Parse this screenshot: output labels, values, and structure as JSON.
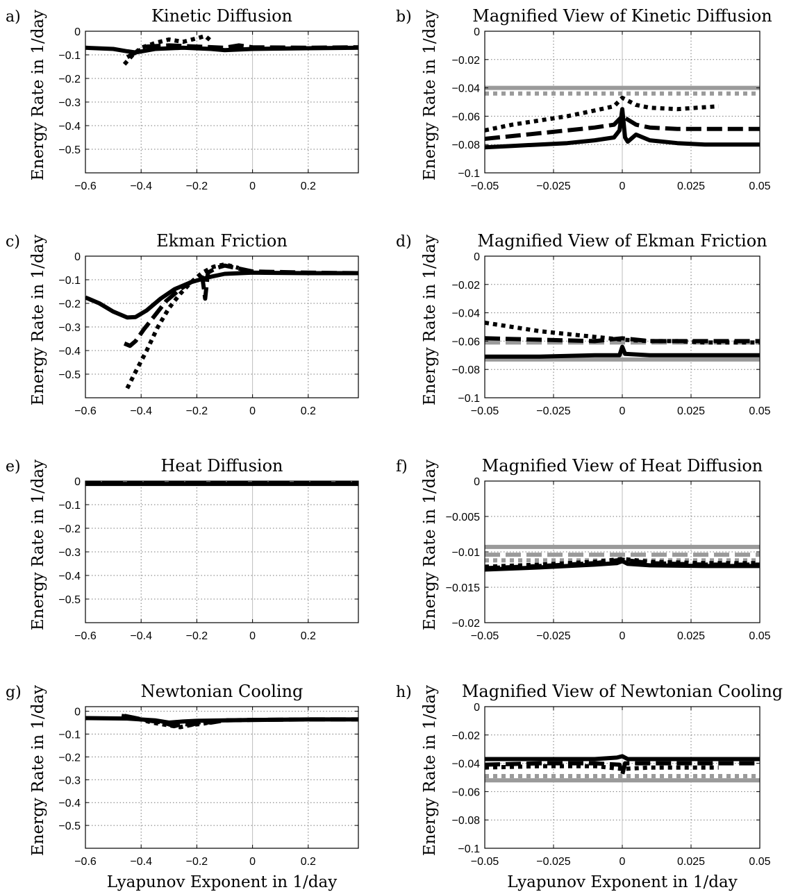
{
  "figure": {
    "colors": {
      "black": "#000000",
      "gray": "#9a9a9a",
      "grid": "#777777"
    }
  },
  "chart_data": [
    {
      "letter": "a)",
      "type": "line",
      "title": "Kinetic Diffusion",
      "ylabel": "Energy Rate in 1/day",
      "xlabel": "",
      "xlim": [
        -0.6,
        0.38
      ],
      "ylim": [
        -0.6,
        0
      ],
      "xticks": [
        -0.6,
        -0.4,
        -0.2,
        0,
        0.2
      ],
      "xtick_labels": [
        "−0.6",
        "−0.4",
        "−0.2",
        "0",
        "0.2"
      ],
      "yticks": [
        0,
        -0.1,
        -0.2,
        -0.3,
        -0.4,
        -0.5
      ],
      "ytick_labels": [
        "0",
        "−0.1",
        "−0.2",
        "−0.3",
        "−0.4",
        "−0.5"
      ],
      "grid": true,
      "zero_line": true,
      "series": [
        {
          "style": "solid",
          "color": "black",
          "x": [
            -0.6,
            -0.5,
            -0.45,
            -0.42,
            -0.35,
            -0.25,
            -0.15,
            -0.1,
            0,
            0.2,
            0.38
          ],
          "y": [
            -0.07,
            -0.075,
            -0.085,
            -0.09,
            -0.075,
            -0.07,
            -0.075,
            -0.08,
            -0.075,
            -0.072,
            -0.07
          ]
        },
        {
          "style": "dashed",
          "color": "black",
          "x": [
            -0.45,
            -0.42,
            -0.38,
            -0.3,
            -0.2,
            -0.1,
            -0.05,
            0,
            0.2,
            0.38
          ],
          "y": [
            -0.11,
            -0.09,
            -0.065,
            -0.06,
            -0.065,
            -0.07,
            -0.06,
            -0.068,
            -0.07,
            -0.068
          ]
        },
        {
          "style": "dotted",
          "color": "black",
          "x": [
            -0.46,
            -0.43,
            -0.4,
            -0.35,
            -0.3,
            -0.25,
            -0.2,
            -0.17,
            -0.15
          ],
          "y": [
            -0.14,
            -0.1,
            -0.07,
            -0.05,
            -0.035,
            -0.045,
            -0.03,
            -0.02,
            -0.04
          ]
        }
      ]
    },
    {
      "letter": "b)",
      "type": "line",
      "title": "Magnified View of Kinetic Diffusion",
      "ylabel": "Energy Rate in 1/day",
      "xlabel": "",
      "xlim": [
        -0.05,
        0.05
      ],
      "ylim": [
        -0.1,
        0
      ],
      "xticks": [
        -0.05,
        -0.025,
        0,
        0.025,
        0.05
      ],
      "xtick_labels": [
        "−0.05",
        "−0.025",
        "0",
        "0.025",
        "0.05"
      ],
      "yticks": [
        0,
        -0.02,
        -0.04,
        -0.06,
        -0.08,
        -0.1
      ],
      "ytick_labels": [
        "0",
        "−0.02",
        "−0.04",
        "−0.06",
        "−0.08",
        "−0.1"
      ],
      "grid": true,
      "zero_line": true,
      "series": [
        {
          "style": "solid",
          "color": "gray",
          "x": [
            -0.05,
            0.05
          ],
          "y": [
            -0.04,
            -0.04
          ]
        },
        {
          "style": "dotted",
          "color": "gray",
          "x": [
            -0.05,
            0.05
          ],
          "y": [
            -0.044,
            -0.044
          ]
        },
        {
          "style": "solid",
          "color": "black",
          "x": [
            -0.05,
            -0.04,
            -0.03,
            -0.02,
            -0.01,
            -0.003,
            -0.001,
            0,
            0.001,
            0.002,
            0.005,
            0.01,
            0.02,
            0.03,
            0.05
          ],
          "y": [
            -0.082,
            -0.081,
            -0.08,
            -0.079,
            -0.077,
            -0.075,
            -0.07,
            -0.055,
            -0.075,
            -0.078,
            -0.073,
            -0.077,
            -0.079,
            -0.08,
            -0.08
          ]
        },
        {
          "style": "dashed",
          "color": "black",
          "x": [
            -0.05,
            -0.04,
            -0.03,
            -0.02,
            -0.01,
            -0.003,
            0,
            0.005,
            0.01,
            0.02,
            0.03,
            0.05
          ],
          "y": [
            -0.076,
            -0.074,
            -0.072,
            -0.07,
            -0.068,
            -0.066,
            -0.06,
            -0.066,
            -0.068,
            -0.069,
            -0.069,
            -0.069
          ]
        },
        {
          "style": "dotted",
          "color": "black",
          "x": [
            -0.05,
            -0.04,
            -0.03,
            -0.02,
            -0.01,
            -0.003,
            0,
            0.005,
            0.01,
            0.02,
            0.035
          ],
          "y": [
            -0.07,
            -0.066,
            -0.063,
            -0.06,
            -0.056,
            -0.053,
            -0.047,
            -0.052,
            -0.054,
            -0.055,
            -0.053
          ]
        }
      ]
    },
    {
      "letter": "c)",
      "type": "line",
      "title": "Ekman Friction",
      "ylabel": "Energy Rate in 1/day",
      "xlabel": "",
      "xlim": [
        -0.6,
        0.38
      ],
      "ylim": [
        -0.6,
        0
      ],
      "xticks": [
        -0.6,
        -0.4,
        -0.2,
        0,
        0.2
      ],
      "xtick_labels": [
        "−0.6",
        "−0.4",
        "−0.2",
        "0",
        "0.2"
      ],
      "yticks": [
        0,
        -0.1,
        -0.2,
        -0.3,
        -0.4,
        -0.5
      ],
      "ytick_labels": [
        "0",
        "−0.1",
        "−0.2",
        "−0.3",
        "−0.4",
        "−0.5"
      ],
      "grid": true,
      "zero_line": true,
      "series": [
        {
          "style": "solid",
          "color": "black",
          "x": [
            -0.6,
            -0.55,
            -0.5,
            -0.45,
            -0.42,
            -0.38,
            -0.33,
            -0.28,
            -0.22,
            -0.16,
            -0.1,
            0,
            0.2,
            0.38
          ],
          "y": [
            -0.175,
            -0.2,
            -0.235,
            -0.26,
            -0.258,
            -0.23,
            -0.18,
            -0.14,
            -0.11,
            -0.09,
            -0.075,
            -0.07,
            -0.072,
            -0.072
          ]
        },
        {
          "style": "dashed",
          "color": "black",
          "x": [
            -0.46,
            -0.44,
            -0.42,
            -0.39,
            -0.35,
            -0.31,
            -0.26,
            -0.22,
            -0.18,
            -0.17,
            -0.16,
            -0.13,
            -0.1,
            0,
            0.2,
            0.38
          ],
          "y": [
            -0.37,
            -0.38,
            -0.36,
            -0.31,
            -0.25,
            -0.19,
            -0.14,
            -0.11,
            -0.09,
            -0.18,
            -0.07,
            -0.05,
            -0.04,
            -0.065,
            -0.07,
            -0.072
          ]
        },
        {
          "style": "dotted",
          "color": "black",
          "x": [
            -0.45,
            -0.42,
            -0.38,
            -0.34,
            -0.3,
            -0.26,
            -0.22,
            -0.18,
            -0.14,
            -0.1,
            -0.05
          ],
          "y": [
            -0.56,
            -0.49,
            -0.4,
            -0.3,
            -0.22,
            -0.16,
            -0.11,
            -0.07,
            -0.045,
            -0.035,
            -0.05
          ]
        }
      ]
    },
    {
      "letter": "d)",
      "type": "line",
      "title": "Magnified View of Ekman Friction",
      "ylabel": "Energy Rate in 1/day",
      "xlabel": "",
      "xlim": [
        -0.05,
        0.05
      ],
      "ylim": [
        -0.1,
        0
      ],
      "xticks": [
        -0.05,
        -0.025,
        0,
        0.025,
        0.05
      ],
      "xtick_labels": [
        "−0.05",
        "−0.025",
        "0",
        "0.025",
        "0.05"
      ],
      "yticks": [
        0,
        -0.02,
        -0.04,
        -0.06,
        -0.08,
        -0.1
      ],
      "ytick_labels": [
        "0",
        "−0.02",
        "−0.04",
        "−0.06",
        "−0.08",
        "−0.1"
      ],
      "grid": true,
      "zero_line": true,
      "series": [
        {
          "style": "solid",
          "color": "gray",
          "x": [
            -0.05,
            0.05
          ],
          "y": [
            -0.073,
            -0.073
          ]
        },
        {
          "style": "dashed",
          "color": "gray",
          "x": [
            -0.05,
            0.05
          ],
          "y": [
            -0.061,
            -0.061
          ]
        },
        {
          "style": "solid",
          "color": "black",
          "x": [
            -0.05,
            -0.03,
            -0.01,
            -0.001,
            0,
            0.001,
            0.01,
            0.03,
            0.05
          ],
          "y": [
            -0.071,
            -0.071,
            -0.07,
            -0.07,
            -0.064,
            -0.069,
            -0.07,
            -0.07,
            -0.07
          ]
        },
        {
          "style": "dashed",
          "color": "black",
          "x": [
            -0.05,
            -0.03,
            -0.01,
            0,
            0.01,
            0.03,
            0.05
          ],
          "y": [
            -0.058,
            -0.059,
            -0.06,
            -0.058,
            -0.06,
            -0.06,
            -0.06
          ]
        },
        {
          "style": "dotted",
          "color": "black",
          "x": [
            -0.05,
            -0.04,
            -0.03,
            -0.02,
            -0.01,
            0,
            0.01,
            0.02,
            0.03,
            0.05
          ],
          "y": [
            -0.047,
            -0.05,
            -0.053,
            -0.055,
            -0.057,
            -0.059,
            -0.06,
            -0.06,
            -0.061,
            -0.061
          ]
        }
      ]
    },
    {
      "letter": "e)",
      "type": "line",
      "title": "Heat Diffusion",
      "ylabel": "Energy Rate in 1/day",
      "xlabel": "",
      "xlim": [
        -0.6,
        0.38
      ],
      "ylim": [
        -0.6,
        0
      ],
      "xticks": [
        -0.6,
        -0.4,
        -0.2,
        0,
        0.2
      ],
      "xtick_labels": [
        "−0.6",
        "−0.4",
        "−0.2",
        "0",
        "0.2"
      ],
      "yticks": [
        0,
        -0.1,
        -0.2,
        -0.3,
        -0.4,
        -0.5
      ],
      "ytick_labels": [
        "0",
        "−0.1",
        "−0.2",
        "−0.3",
        "−0.4",
        "−0.5"
      ],
      "grid": true,
      "zero_line": true,
      "series": [
        {
          "style": "solid",
          "color": "black",
          "x": [
            -0.6,
            0.38
          ],
          "y": [
            -0.012,
            -0.012
          ]
        },
        {
          "style": "dashed",
          "color": "black",
          "x": [
            -0.6,
            0.38
          ],
          "y": [
            -0.01,
            -0.01
          ]
        },
        {
          "style": "dotted",
          "color": "black",
          "x": [
            -0.6,
            0.38
          ],
          "y": [
            -0.008,
            -0.008
          ]
        }
      ]
    },
    {
      "letter": "f)",
      "type": "line",
      "title": "Magnified View of Heat Diffusion",
      "ylabel": "Energy Rate in 1/day",
      "xlabel": "",
      "xlim": [
        -0.05,
        0.05
      ],
      "ylim": [
        -0.02,
        0
      ],
      "xticks": [
        -0.05,
        -0.025,
        0,
        0.025,
        0.05
      ],
      "xtick_labels": [
        "−0.05",
        "−0.025",
        "0",
        "0.025",
        "0.05"
      ],
      "yticks": [
        0,
        -0.005,
        -0.01,
        -0.015,
        -0.02
      ],
      "ytick_labels": [
        "0",
        "−0.005",
        "−0.01",
        "−0.015",
        "−0.02"
      ],
      "grid": true,
      "zero_line": true,
      "series": [
        {
          "style": "solid",
          "color": "gray",
          "x": [
            -0.05,
            0.05
          ],
          "y": [
            -0.0093,
            -0.0093
          ]
        },
        {
          "style": "dashed",
          "color": "gray",
          "x": [
            -0.05,
            0.05
          ],
          "y": [
            -0.0104,
            -0.0104
          ]
        },
        {
          "style": "dotted",
          "color": "gray",
          "x": [
            -0.05,
            0.05
          ],
          "y": [
            -0.0112,
            -0.0112
          ]
        },
        {
          "style": "solid",
          "color": "black",
          "x": [
            -0.05,
            -0.03,
            -0.01,
            -0.002,
            0,
            0.002,
            0.01,
            0.03,
            0.05
          ],
          "y": [
            -0.0125,
            -0.0122,
            -0.0118,
            -0.0116,
            -0.0113,
            -0.0117,
            -0.0119,
            -0.012,
            -0.012
          ]
        },
        {
          "style": "dashed",
          "color": "black",
          "x": [
            -0.05,
            -0.03,
            -0.01,
            0,
            0.01,
            0.03,
            0.05
          ],
          "y": [
            -0.0123,
            -0.012,
            -0.0116,
            -0.0111,
            -0.0116,
            -0.0118,
            -0.0118
          ]
        },
        {
          "style": "dotted",
          "color": "black",
          "x": [
            -0.05,
            -0.03,
            -0.01,
            0,
            0.01,
            0.03,
            0.05
          ],
          "y": [
            -0.0121,
            -0.0118,
            -0.0114,
            -0.011,
            -0.0114,
            -0.0116,
            -0.0116
          ]
        }
      ]
    },
    {
      "letter": "g)",
      "type": "line",
      "title": "Newtonian Cooling",
      "ylabel": "Energy Rate in 1/day",
      "xlabel": "Lyapunov Exponent in 1/day",
      "xlim": [
        -0.6,
        0.38
      ],
      "ylim": [
        -0.6,
        0.02
      ],
      "xticks": [
        -0.6,
        -0.4,
        -0.2,
        0,
        0.2
      ],
      "xtick_labels": [
        "−0.6",
        "−0.4",
        "−0.2",
        "0",
        "0.2"
      ],
      "yticks": [
        0,
        -0.1,
        -0.2,
        -0.3,
        -0.4,
        -0.5
      ],
      "ytick_labels": [
        "0",
        "−0.1",
        "−0.2",
        "−0.3",
        "−0.4",
        "−0.5"
      ],
      "grid": true,
      "zero_line": true,
      "series": [
        {
          "style": "solid",
          "color": "black",
          "x": [
            -0.6,
            -0.45,
            -0.35,
            -0.3,
            -0.25,
            -0.2,
            -0.1,
            0,
            0.2,
            0.38
          ],
          "y": [
            -0.03,
            -0.032,
            -0.04,
            -0.05,
            -0.045,
            -0.042,
            -0.04,
            -0.038,
            -0.036,
            -0.036
          ]
        },
        {
          "style": "dashed",
          "color": "black",
          "x": [
            -0.46,
            -0.42,
            -0.38,
            -0.32,
            -0.28,
            -0.25,
            -0.22,
            -0.18,
            -0.15,
            -0.1,
            0,
            0.2,
            0.38
          ],
          "y": [
            -0.02,
            -0.03,
            -0.04,
            -0.05,
            -0.065,
            -0.055,
            -0.06,
            -0.045,
            -0.05,
            -0.04,
            -0.038,
            -0.036,
            -0.036
          ]
        },
        {
          "style": "dotted",
          "color": "black",
          "x": [
            -0.47,
            -0.42,
            -0.36,
            -0.31,
            -0.26,
            -0.22,
            -0.18,
            -0.14
          ],
          "y": [
            -0.02,
            -0.03,
            -0.05,
            -0.06,
            -0.07,
            -0.06,
            -0.055,
            -0.045
          ]
        }
      ]
    },
    {
      "letter": "h)",
      "type": "line",
      "title": "Magnified View of Newtonian Cooling",
      "ylabel": "Energy Rate in 1/day",
      "xlabel": "Lyapunov Exponent in 1/day",
      "xlim": [
        -0.05,
        0.05
      ],
      "ylim": [
        -0.1,
        0
      ],
      "xticks": [
        -0.05,
        -0.025,
        0,
        0.025,
        0.05
      ],
      "xtick_labels": [
        "−0.05",
        "−0.025",
        "0",
        "0.025",
        "0.05"
      ],
      "yticks": [
        0,
        -0.02,
        -0.04,
        -0.06,
        -0.08,
        -0.1
      ],
      "ytick_labels": [
        "0",
        "−0.02",
        "−0.04",
        "−0.06",
        "−0.08",
        "−0.1"
      ],
      "grid": true,
      "zero_line": true,
      "series": [
        {
          "style": "solid",
          "color": "gray",
          "x": [
            -0.05,
            0.05
          ],
          "y": [
            -0.052,
            -0.052
          ]
        },
        {
          "style": "dotted",
          "color": "gray",
          "x": [
            -0.05,
            0.05
          ],
          "y": [
            -0.049,
            -0.049
          ]
        },
        {
          "style": "solid",
          "color": "black",
          "x": [
            -0.05,
            -0.03,
            -0.01,
            -0.002,
            0,
            0.002,
            0.01,
            0.03,
            0.05
          ],
          "y": [
            -0.037,
            -0.037,
            -0.037,
            -0.036,
            -0.035,
            -0.037,
            -0.037,
            -0.037,
            -0.037
          ]
        },
        {
          "style": "dashed",
          "color": "black",
          "x": [
            -0.05,
            -0.03,
            -0.01,
            -0.001,
            0,
            0.001,
            0.01,
            0.03,
            0.05
          ],
          "y": [
            -0.041,
            -0.04,
            -0.04,
            -0.041,
            -0.048,
            -0.04,
            -0.04,
            -0.04,
            -0.04
          ]
        },
        {
          "style": "dotted",
          "color": "black",
          "x": [
            -0.05,
            -0.03,
            -0.01,
            0,
            0.01,
            0.02,
            0.035
          ],
          "y": [
            -0.043,
            -0.042,
            -0.042,
            -0.044,
            -0.043,
            -0.043,
            -0.043
          ]
        }
      ]
    }
  ]
}
